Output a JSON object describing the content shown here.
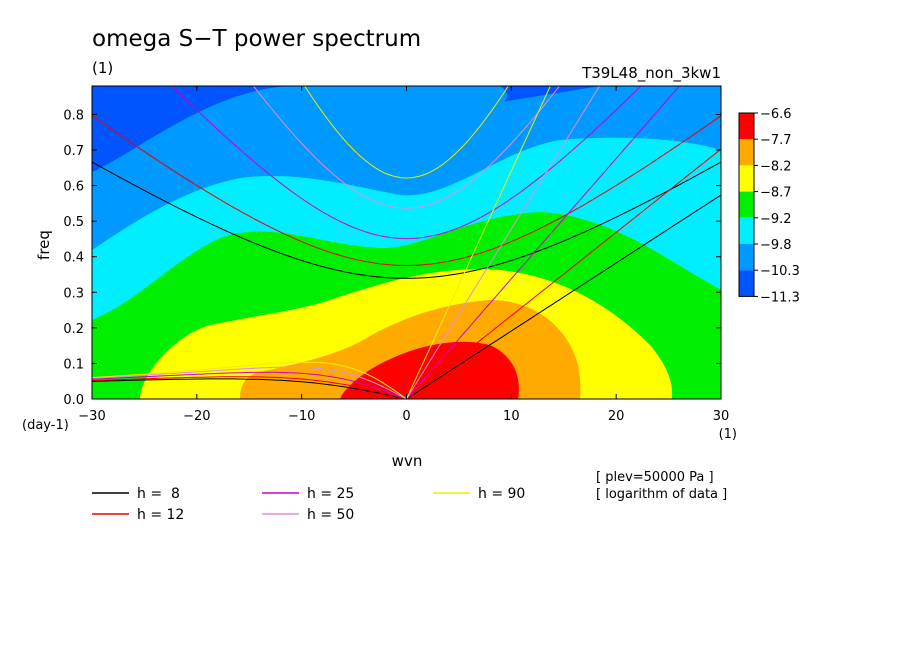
{
  "figure": {
    "title": "omega S−T power spectrum",
    "title_units": "(1)",
    "experiment": "T39L48_non_3kw1",
    "notes": [
      "[ plev=50000 Pa ]",
      "[ logarithm of data ]"
    ]
  },
  "colors": {
    "levels": [
      "#0055ff",
      "#0099ff",
      "#00eeff",
      "#00ee00",
      "#ffff00",
      "#ffaa00",
      "#ff0000"
    ]
  },
  "chart_data": {
    "type": "heatmap",
    "xlabel": "wvn",
    "xunits": "(1)",
    "ylabel": "freq",
    "yunits": "(day-1)",
    "xlim": [
      -30,
      30
    ],
    "ylim": [
      0,
      0.88
    ],
    "xticks": [
      -30,
      -20,
      -10,
      0,
      10,
      20,
      30
    ],
    "xtick_labels": [
      "−30",
      "−20",
      "−10",
      "0",
      "10",
      "20",
      "30"
    ],
    "yticks": [
      0,
      0.1,
      0.2,
      0.3,
      0.4,
      0.5,
      0.6,
      0.7,
      0.8
    ],
    "ytick_labels": [
      "0.0",
      "0.1",
      "0.2",
      "0.3",
      "0.4",
      "0.5",
      "0.6",
      "0.7",
      "0.8"
    ],
    "colorbar": {
      "labels": [
        "−6.6",
        "−7.7",
        "−8.2",
        "−8.7",
        "−9.2",
        "−9.8",
        "−10.3",
        "−11.3"
      ],
      "colors": [
        "#ff0000",
        "#ffaa00",
        "#ffff00",
        "#00ee00",
        "#00eeff",
        "#0099ff",
        "#0055ff"
      ]
    },
    "dispersion_curves": [
      {
        "name": "h =  8",
        "h": 8,
        "color": "#000000"
      },
      {
        "name": "h = 12",
        "h": 12,
        "color": "#ee0000"
      },
      {
        "name": "h = 25",
        "h": 25,
        "color": "#cc00cc"
      },
      {
        "name": "h = 50",
        "h": 50,
        "color": "#e08ee0"
      },
      {
        "name": "h = 90",
        "h": 90,
        "color": "#eeee00"
      }
    ]
  }
}
